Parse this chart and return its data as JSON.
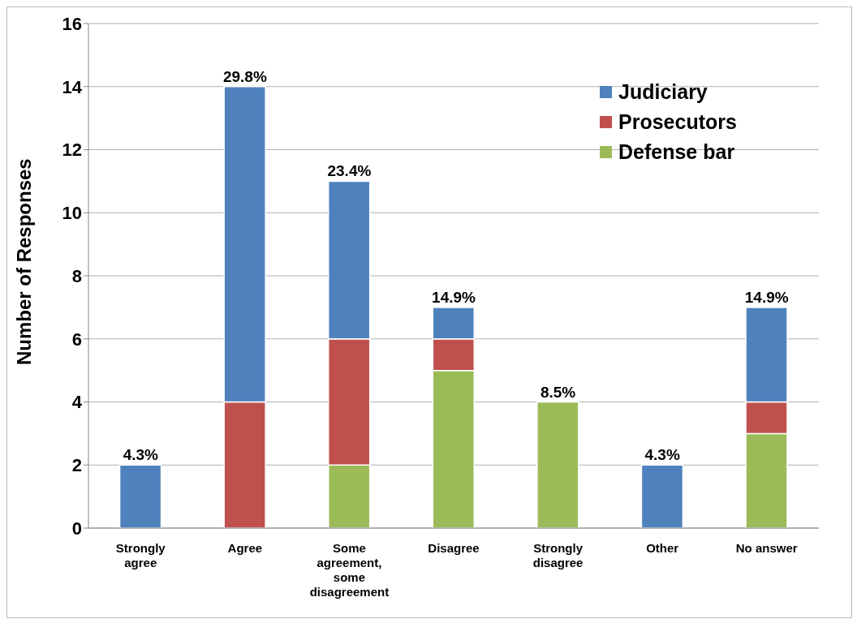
{
  "chart_data": {
    "type": "bar",
    "stacked": true,
    "ylabel": "Number of Responses",
    "categories": [
      "Strongly agree",
      "Agree",
      "Some agreement, some disagreement",
      "Disagree",
      "Strongly disagree",
      "Other",
      "No answer"
    ],
    "series": [
      {
        "name": "Defense bar",
        "color": "#9bbb59",
        "values": [
          0,
          0,
          2,
          5,
          4,
          0,
          3
        ]
      },
      {
        "name": "Prosecutors",
        "color": "#c0504d",
        "values": [
          0,
          4,
          4,
          1,
          0,
          0,
          1
        ]
      },
      {
        "name": "Judiciary",
        "color": "#4f81bd",
        "values": [
          2,
          10,
          5,
          1,
          0,
          2,
          3
        ]
      }
    ],
    "annotations": [
      {
        "text": "4.3%",
        "x": "Strongly agree",
        "y": 2
      },
      {
        "text": "29.8%",
        "x": "Agree",
        "y": 14
      },
      {
        "text": "23.4%",
        "x": "Some agreement, some disagreement",
        "y": 11
      },
      {
        "text": "14.9%",
        "x": "Disagree",
        "y": 7
      },
      {
        "text": "8.5%",
        "x": "Strongly disagree",
        "y": 4
      },
      {
        "text": "4.3%",
        "x": "Other",
        "y": 2
      },
      {
        "text": "14.9%",
        "x": "No answer",
        "y": 7
      }
    ],
    "ylim": [
      0,
      16
    ],
    "yticks": [
      0,
      2,
      4,
      6,
      8,
      10,
      12,
      14,
      16
    ],
    "grid": "y",
    "legend": "top right"
  }
}
